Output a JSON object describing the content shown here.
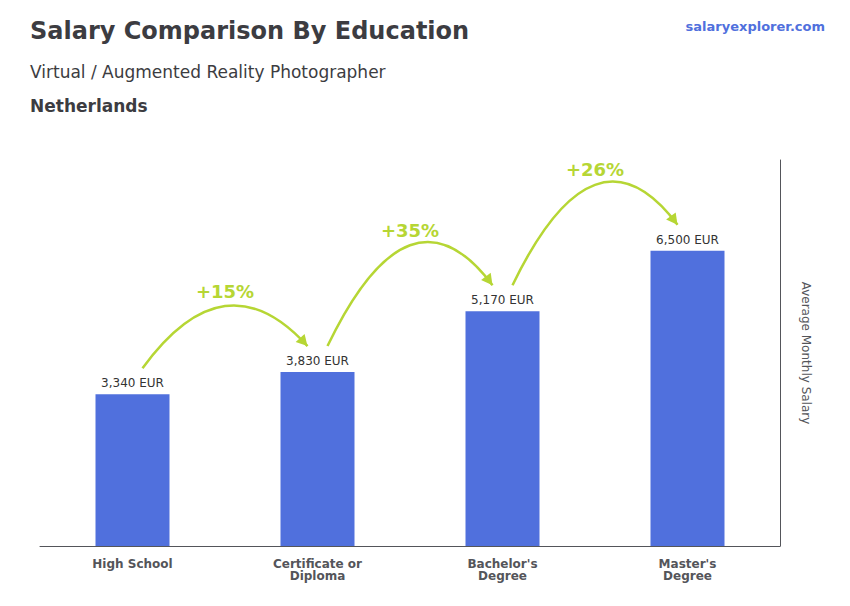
{
  "chart_data": {
    "type": "bar",
    "title": "Salary Comparison By Education",
    "subtitle": "Virtual / Augmented Reality Photographer",
    "ylabel": "Average Monthly Salary",
    "categories": [
      "High School",
      "Certificate or\nDiploma",
      "Bachelor's\nDegree",
      "Master's\nDegree"
    ],
    "values": [
      3340,
      3830,
      5170,
      6500
    ],
    "value_labels": [
      "3,340 EUR",
      "3,830 EUR",
      "5,170 EUR",
      "6,500 EUR"
    ],
    "data_labels": true,
    "ylim": [
      0,
      8500
    ],
    "grid": false,
    "tick_labels": "x",
    "annotations": [
      {
        "text": "Netherlands"
      },
      {
        "text": "salaryexplorer.com"
      },
      {
        "text": "+15%",
        "from": "High School",
        "to": "Certificate or\nDiploma"
      },
      {
        "text": "+35%",
        "from": "Certificate or\nDiploma",
        "to": "Bachelor's\nDegree"
      },
      {
        "text": "+26%",
        "from": "Bachelor's\nDegree",
        "to": "Master's\nDegree"
      }
    ]
  }
}
